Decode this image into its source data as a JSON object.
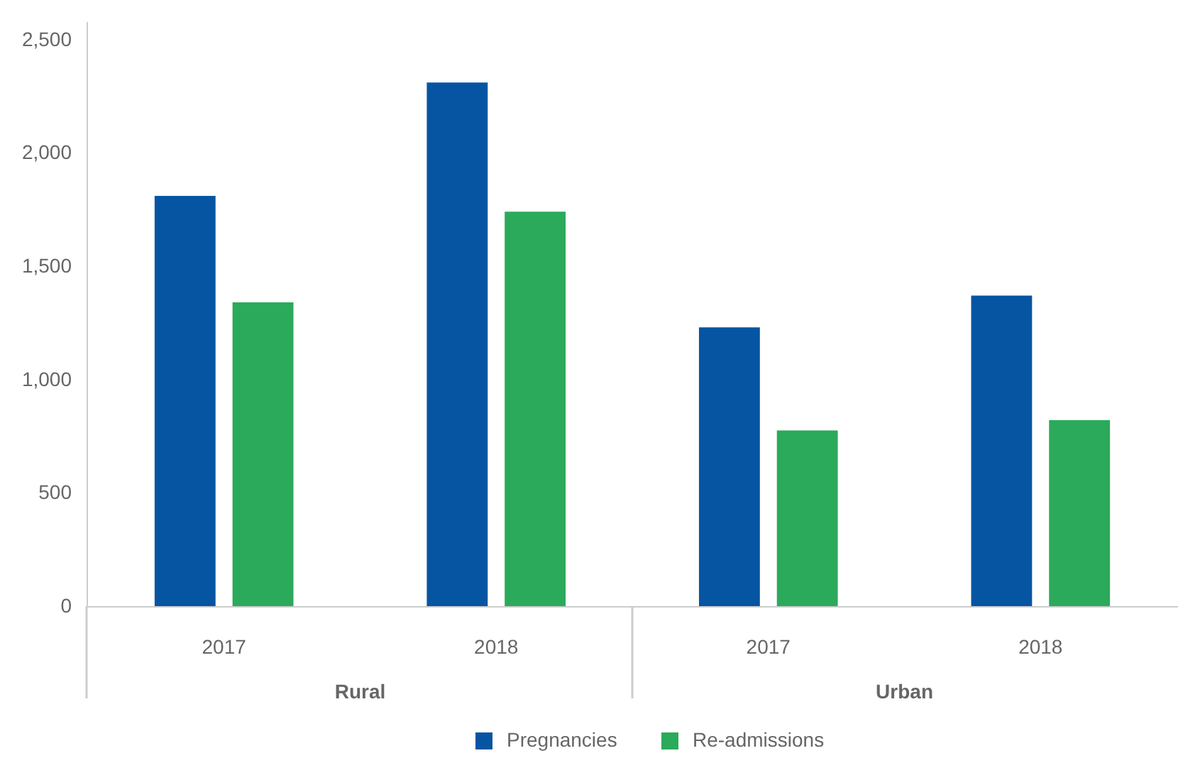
{
  "chart_data": {
    "type": "bar",
    "categories": [
      "2017",
      "2018",
      "2017",
      "2018"
    ],
    "annotations": [
      "Rural",
      "Urban"
    ],
    "series": [
      {
        "name": "Pregnancies",
        "color": "#0655a2",
        "values": [
          1810,
          2310,
          1230,
          1370
        ]
      },
      {
        "name": "Re-admissions",
        "color": "#2aaa5a",
        "values": [
          1340,
          1740,
          775,
          820
        ]
      }
    ],
    "ylim": [
      0,
      2580
    ],
    "yticks": [
      0,
      500,
      {
        "value": 1000,
        "label": "1,000"
      },
      {
        "value": 1500,
        "label": "1,500"
      },
      {
        "value": 2000,
        "label": "2,000"
      },
      {
        "value": 2500,
        "label": "2,500"
      }
    ],
    "grid": false,
    "legend": "bottom"
  }
}
